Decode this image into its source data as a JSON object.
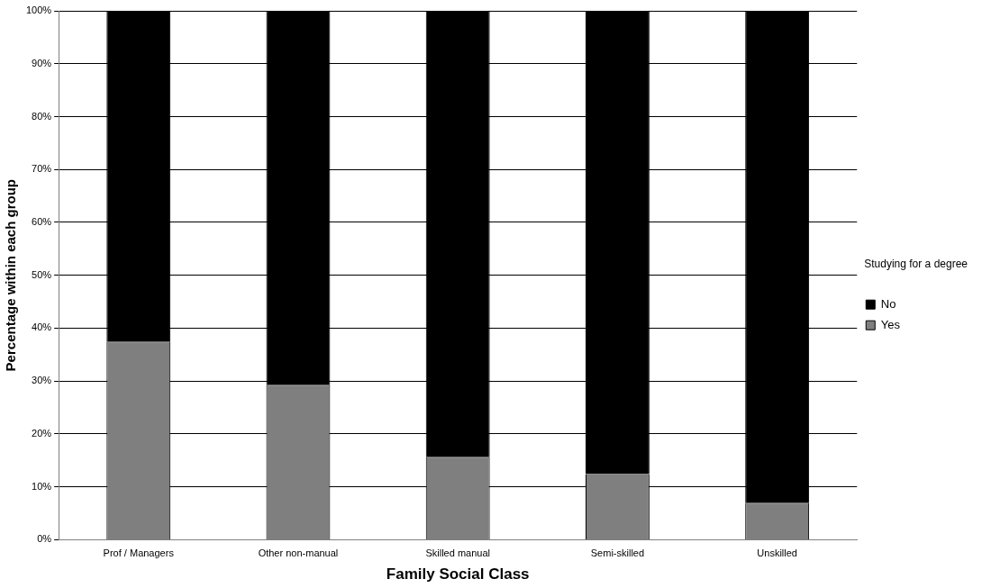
{
  "chart_data": {
    "type": "bar",
    "stacked": true,
    "xlabel": "Family Social Class",
    "ylabel": "Percentage within each group",
    "legend_title": "Studying for a degree",
    "legend": "right",
    "categories": [
      "Prof / Managers",
      "Other non-manual",
      "Skilled manual",
      "Semi-skilled",
      "Unskilled"
    ],
    "series": [
      {
        "name": "Yes",
        "color": "#7f7f7f",
        "values": [
          37.5,
          29.3,
          15.7,
          12.4,
          7.0
        ]
      },
      {
        "name": "No",
        "color": "#000000",
        "values": [
          62.5,
          70.7,
          84.3,
          87.6,
          93.0
        ]
      }
    ],
    "ylim": [
      0,
      100
    ],
    "yticks": [
      {
        "value": 0,
        "label": "0%"
      },
      {
        "value": 10,
        "label": "10%"
      },
      {
        "value": 20,
        "label": "20%"
      },
      {
        "value": 30,
        "label": "30%"
      },
      {
        "value": 40,
        "label": "40%"
      },
      {
        "value": 50,
        "label": "50%"
      },
      {
        "value": 60,
        "label": "60%"
      },
      {
        "value": 70,
        "label": "70%"
      },
      {
        "value": 80,
        "label": "80%"
      },
      {
        "value": 90,
        "label": "90%"
      },
      {
        "value": 100,
        "label": "100%"
      }
    ],
    "grid": "y"
  }
}
